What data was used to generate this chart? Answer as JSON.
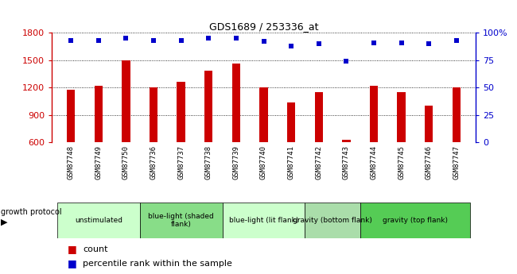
{
  "title": "GDS1689 / 253336_at",
  "samples": [
    "GSM87748",
    "GSM87749",
    "GSM87750",
    "GSM87736",
    "GSM87737",
    "GSM87738",
    "GSM87739",
    "GSM87740",
    "GSM87741",
    "GSM87742",
    "GSM87743",
    "GSM87744",
    "GSM87745",
    "GSM87746",
    "GSM87747"
  ],
  "counts": [
    1175,
    1220,
    1500,
    1200,
    1260,
    1390,
    1460,
    1200,
    1040,
    1155,
    630,
    1220,
    1155,
    1000,
    1205
  ],
  "percentiles": [
    93,
    93,
    95,
    93,
    93,
    95,
    95,
    92,
    88,
    90,
    74,
    91,
    91,
    90,
    93
  ],
  "ylim_left": [
    600,
    1800
  ],
  "ylim_right": [
    0,
    100
  ],
  "yticks_left": [
    600,
    900,
    1200,
    1500,
    1800
  ],
  "yticks_right": [
    0,
    25,
    50,
    75,
    100
  ],
  "bar_color": "#cc0000",
  "dot_color": "#0000cc",
  "groups": [
    {
      "label": "unstimulated",
      "start": 0,
      "end": 3,
      "color": "#ccffcc"
    },
    {
      "label": "blue-light (shaded\nflank)",
      "start": 3,
      "end": 6,
      "color": "#88dd88"
    },
    {
      "label": "blue-light (lit flank)",
      "start": 6,
      "end": 9,
      "color": "#ccffcc"
    },
    {
      "label": "gravity (bottom flank)",
      "start": 9,
      "end": 11,
      "color": "#aaddaa"
    },
    {
      "label": "gravity (top flank)",
      "start": 11,
      "end": 15,
      "color": "#55cc55"
    }
  ],
  "group_protocol_label": "growth protocol",
  "legend_count_label": "count",
  "legend_pct_label": "percentile rank within the sample",
  "plot_bg_color": "#ffffff",
  "tick_area_color": "#c8c8c8",
  "right_axis_color": "#0000cc",
  "left_axis_color": "#cc0000",
  "bar_width": 0.3
}
